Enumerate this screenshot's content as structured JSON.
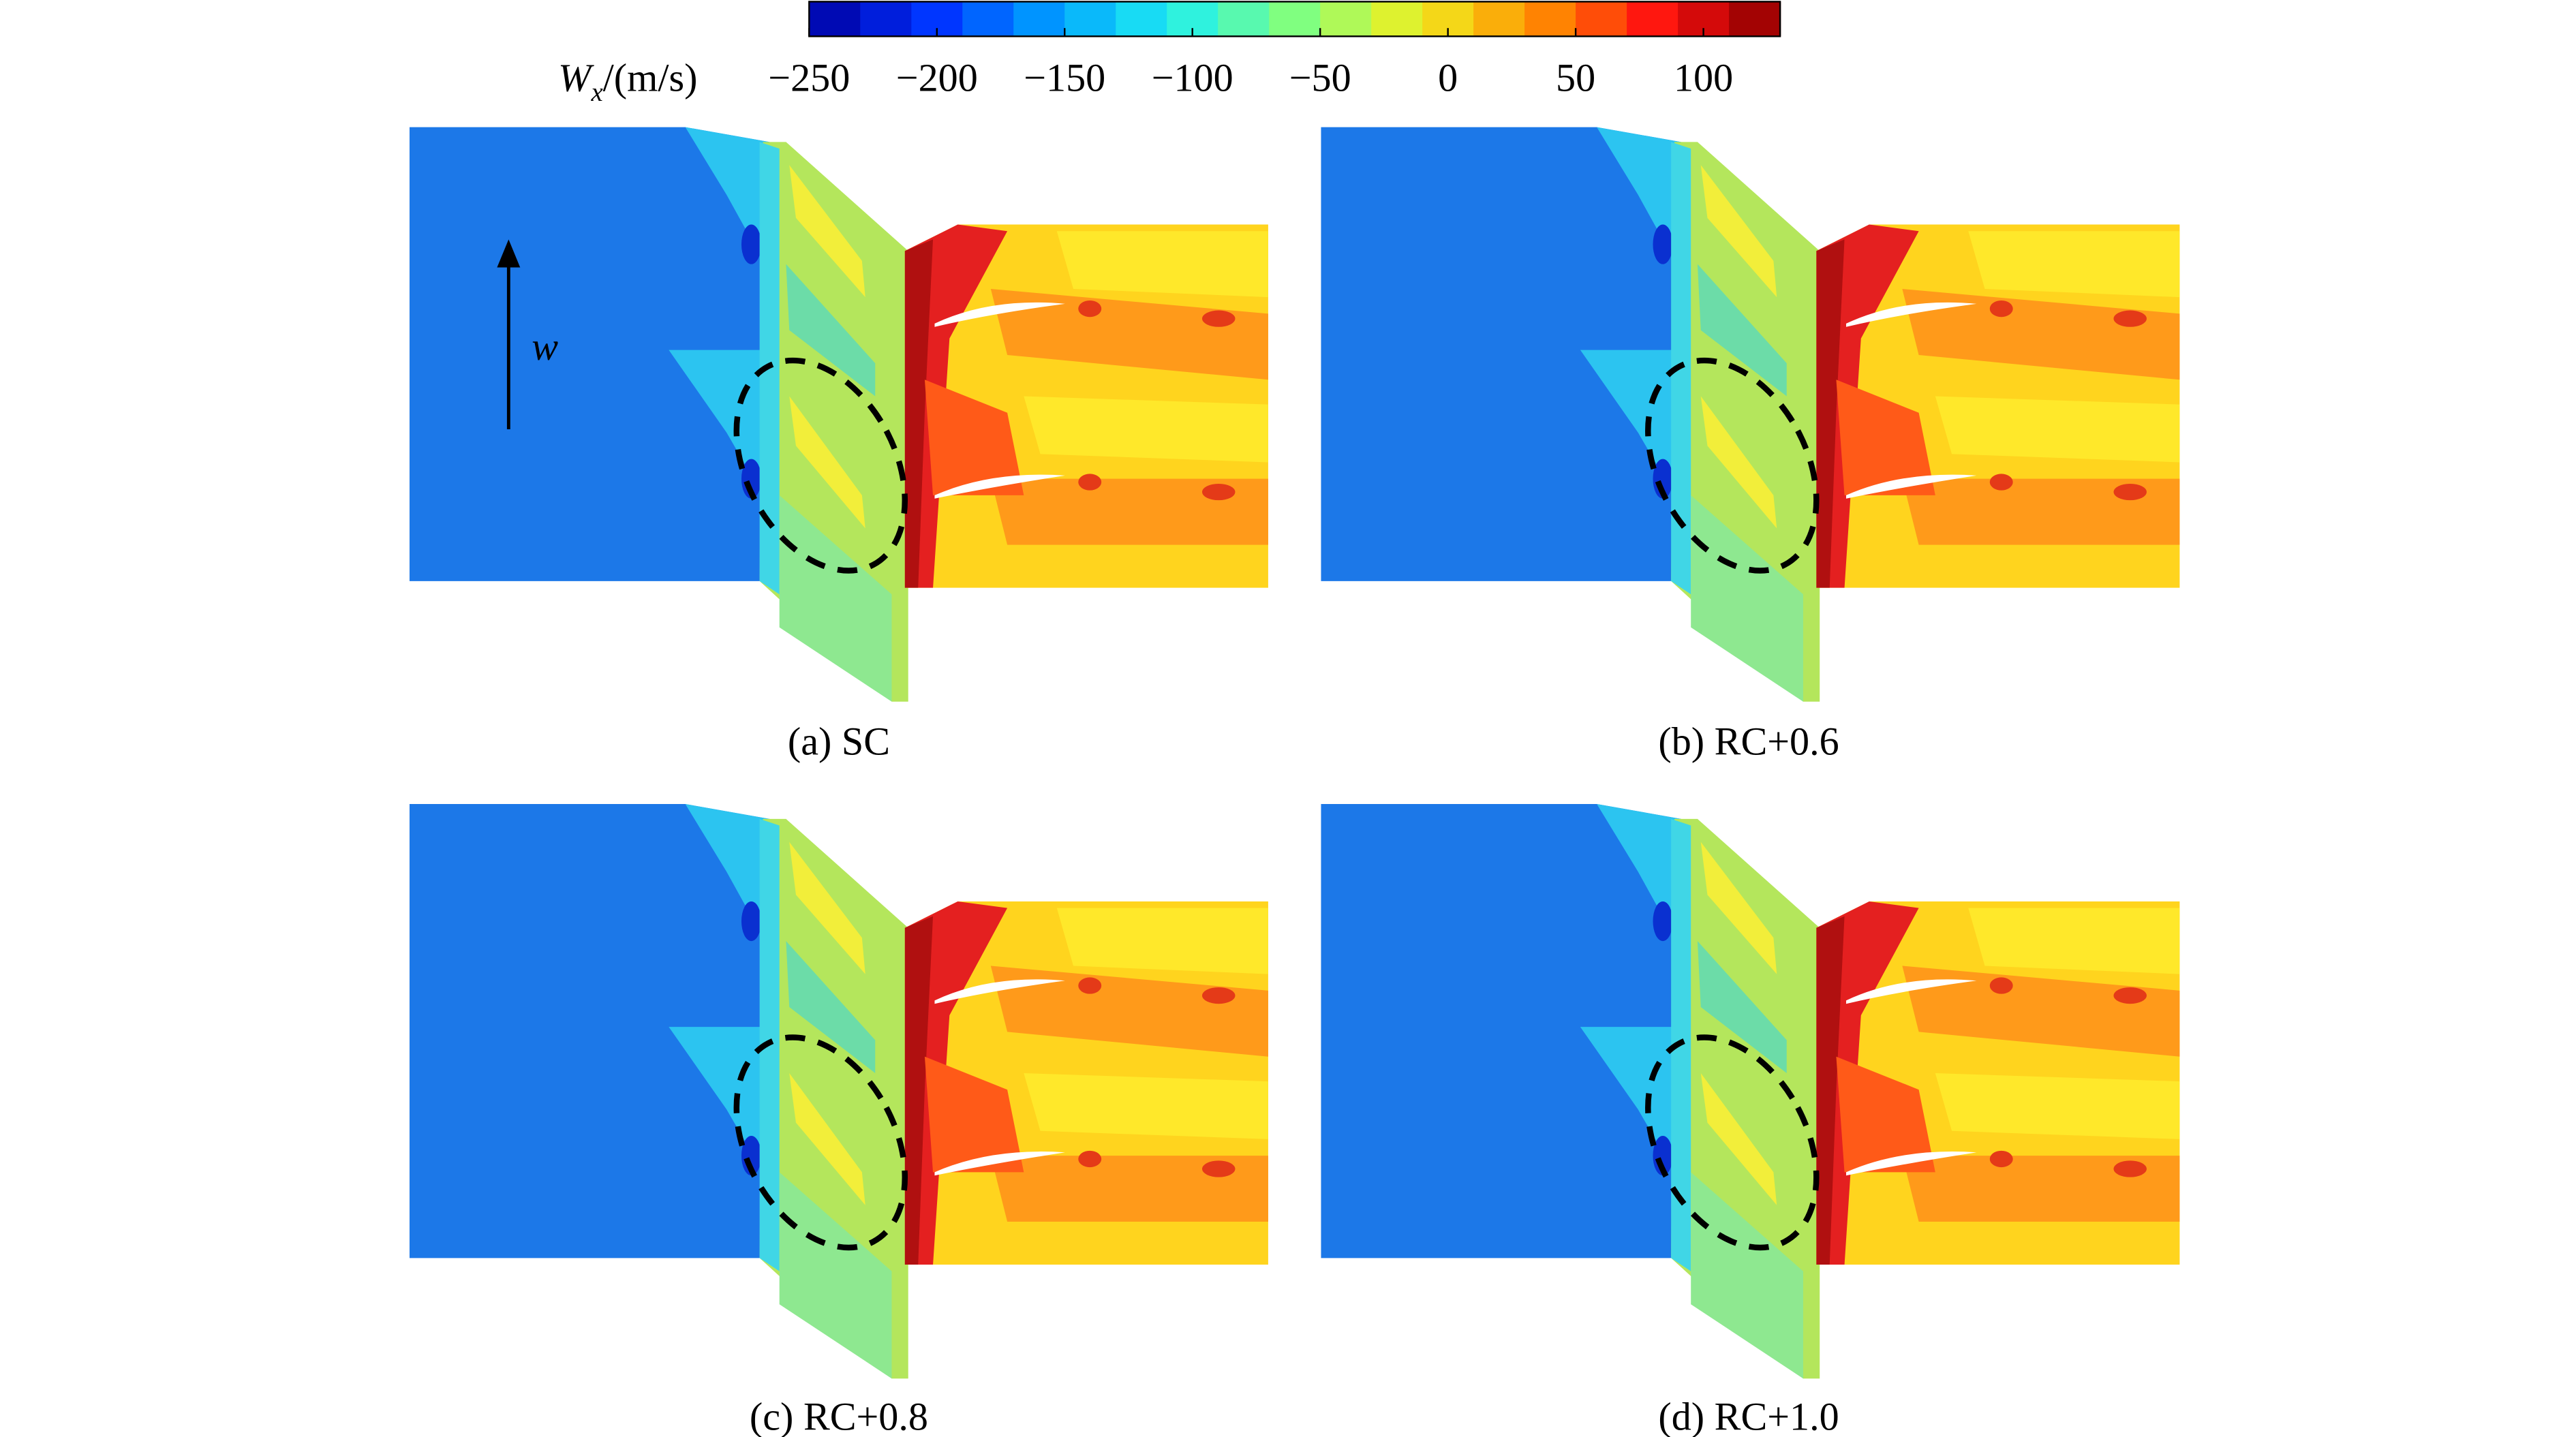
{
  "colorbar": {
    "label": {
      "symbol": "W",
      "subscript": "x",
      "unit": "/(m/s)"
    },
    "clim": [
      -250,
      130
    ],
    "colormap": [
      "#0000a0",
      "#0030ff",
      "#00a0ff",
      "#20f0f0",
      "#80ff80",
      "#f0f020",
      "#ff9000",
      "#ff1010",
      "#8b0000"
    ],
    "ticks": [
      {
        "value": -250,
        "label": "−250"
      },
      {
        "value": -200,
        "label": "−200"
      },
      {
        "value": -150,
        "label": "−150"
      },
      {
        "value": -100,
        "label": "−100"
      },
      {
        "value": -50,
        "label": "−50"
      },
      0,
      50,
      100
    ]
  },
  "annotation": "w",
  "panels": [
    {
      "caption": "(a) SC"
    },
    {
      "caption": "(b) RC+0.6"
    },
    {
      "caption": "(c) RC+0.8"
    },
    {
      "caption": "(d) RC+1.0"
    }
  ]
}
